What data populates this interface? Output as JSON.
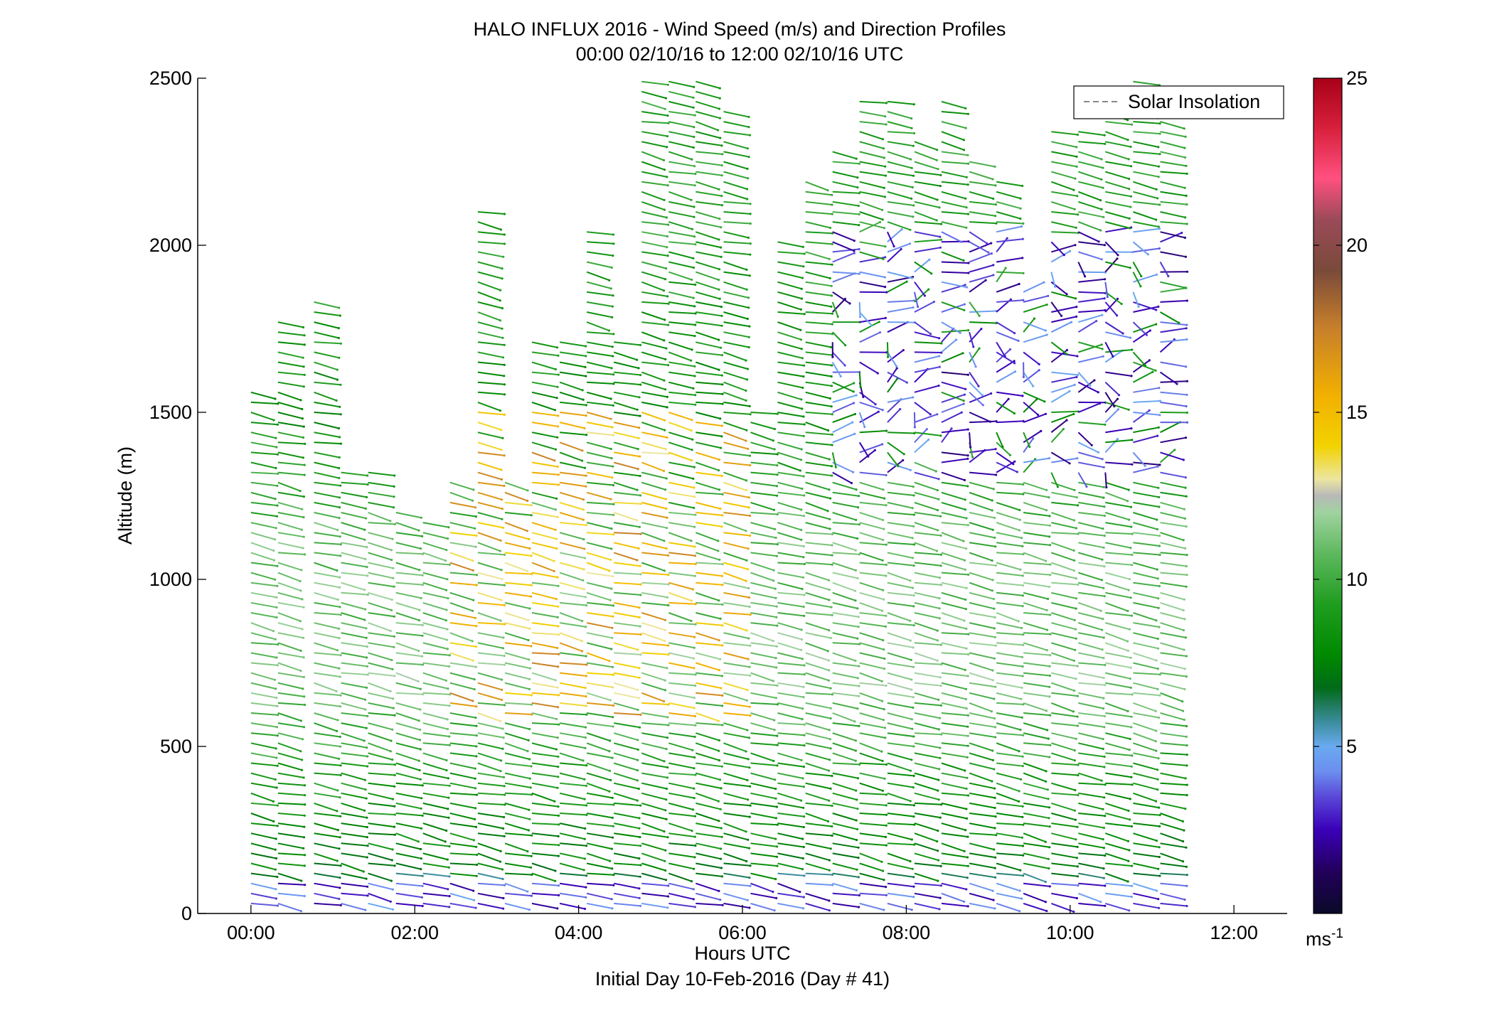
{
  "chart_data": {
    "type": "scatter",
    "subtype": "wind barb profiles (time-height)",
    "title": "HALO INFLUX 2016 - Wind Speed (m/s) and Direction Profiles",
    "subtitle": "00:00 02/10/16 to 12:00 02/10/16  UTC",
    "xlabel": "Hours UTC",
    "xlabel2": "Initial Day 10-Feb-2016 (Day # 41)",
    "ylabel": "Altitude (m)",
    "xlim": [
      -0.65,
      12.65
    ],
    "ylim": [
      0,
      2500
    ],
    "x_ticks": [
      0,
      2,
      4,
      6,
      8,
      10,
      12
    ],
    "x_tick_labels": [
      "00:00",
      "02:00",
      "04:00",
      "06:00",
      "08:00",
      "10:00",
      "12:00"
    ],
    "y_ticks": [
      0,
      500,
      1000,
      1500,
      2000,
      2500
    ],
    "y_tick_labels": [
      "0",
      "500",
      "1000",
      "1500",
      "2000",
      "2500"
    ],
    "legend": {
      "entries": [
        "Solar Insolation"
      ],
      "placement": "top-right",
      "line_color": "#888888"
    },
    "colorbar": {
      "range": [
        0,
        25
      ],
      "ticks": [
        5,
        10,
        15,
        20,
        25
      ],
      "tick_labels": [
        "5",
        "10",
        "15",
        "20",
        "25"
      ],
      "unit_label": "ms",
      "unit_exponent": "-1"
    },
    "profile_times_hours": [
      0.0,
      0.33,
      0.77,
      1.1,
      1.43,
      1.77,
      2.1,
      2.43,
      2.77,
      3.1,
      3.43,
      3.77,
      4.1,
      4.43,
      4.77,
      5.1,
      5.43,
      5.77,
      6.1,
      6.43,
      6.77,
      7.1,
      7.43,
      7.77,
      8.1,
      8.43,
      8.77,
      9.1,
      9.43,
      9.77,
      10.1,
      10.43,
      10.77,
      11.1
    ],
    "profile_top_altitude_m": [
      1580,
      1780,
      1850,
      1340,
      1340,
      1200,
      1190,
      1300,
      2120,
      1300,
      1710,
      1720,
      2060,
      1730,
      2500,
      2500,
      2500,
      2420,
      1500,
      2020,
      2200,
      2300,
      2450,
      2450,
      2310,
      2450,
      2270,
      2200,
      1880,
      2350,
      2350,
      2400,
      2490,
      2400
    ],
    "altitude_step_m": 30,
    "speed_profile_by_altitude_m": [
      {
        "altitude_m": 30,
        "speed_ms": 4.5
      },
      {
        "altitude_m": 150,
        "speed_ms": 7.5
      },
      {
        "altitude_m": 400,
        "speed_ms": 8.5
      },
      {
        "altitude_m": 700,
        "speed_ms": 11.0
      },
      {
        "altitude_m": 1100,
        "speed_ms": 10.5
      },
      {
        "altitude_m": 1500,
        "speed_ms": 8.0
      },
      {
        "altitude_m": 2000,
        "speed_ms": 9.0
      }
    ],
    "notable_features": [
      {
        "description": "strong 13-17 m/s jet",
        "time_hours": [
          2.4,
          5.9
        ],
        "altitude_m": [
          600,
          1500
        ]
      },
      {
        "description": "weak 1-5 m/s flow",
        "time_hours": [
          7.0,
          11.2
        ],
        "altitude_m": [
          1300,
          2050
        ]
      },
      {
        "description": "weak 1-5 m/s near surface",
        "time_hours": [
          0.0,
          11.1
        ],
        "altitude_m": [
          0,
          100
        ]
      }
    ],
    "direction_from_deg_typical": 290,
    "grid": false
  }
}
